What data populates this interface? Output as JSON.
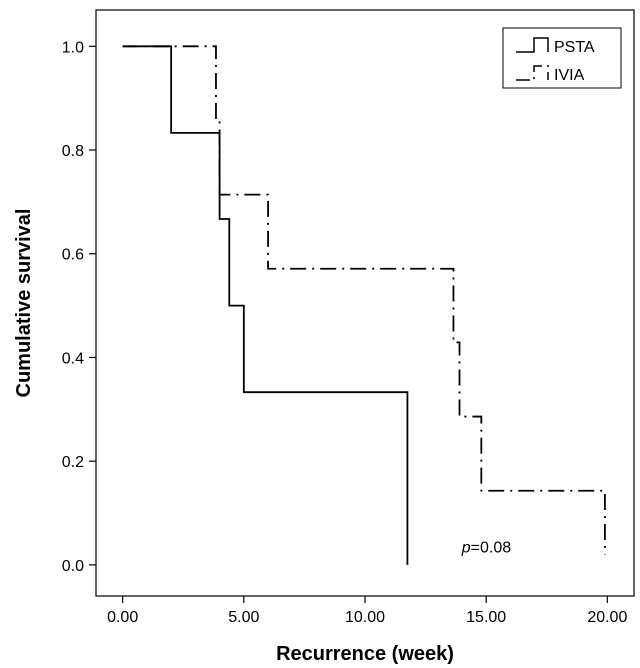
{
  "chart_data": {
    "type": "line",
    "step": true,
    "title": "",
    "xlabel": "Recurrence (week)",
    "ylabel": "Cumulative survival",
    "xlim": [
      -1.1,
      21.1
    ],
    "ylim": [
      -0.06,
      1.07
    ],
    "xticks": [
      0,
      5,
      10,
      15,
      20
    ],
    "xtick_labels": [
      "0.00",
      "5.00",
      "10.00",
      "15.00",
      "20.00"
    ],
    "yticks": [
      0,
      0.2,
      0.4,
      0.6,
      0.8,
      1.0
    ],
    "ytick_labels": [
      "0.0",
      "0.2",
      "0.4",
      "0.6",
      "0.8",
      "1.0"
    ],
    "grid": false,
    "legend_position": "top-right",
    "series": [
      {
        "name": "PSTA",
        "style": "solid",
        "color": "#000000",
        "x": [
          0,
          2.0,
          2.0,
          4.0,
          4.0,
          4.4,
          4.4,
          5.0,
          5.0,
          11.75,
          11.75
        ],
        "y": [
          1.0,
          1.0,
          0.833,
          0.833,
          0.667,
          0.667,
          0.5,
          0.5,
          0.333,
          0.333,
          0.0
        ]
      },
      {
        "name": "IVIA",
        "style": "dashdot",
        "color": "#000000",
        "x": [
          0,
          3.85,
          3.85,
          4.0,
          4.0,
          6.0,
          6.0,
          13.65,
          13.65,
          13.9,
          13.9,
          14.8,
          14.8,
          19.9,
          19.9
        ],
        "y": [
          1.0,
          1.0,
          0.857,
          0.857,
          0.714,
          0.714,
          0.571,
          0.571,
          0.429,
          0.429,
          0.286,
          0.286,
          0.143,
          0.143,
          0.02
        ]
      }
    ],
    "annotation": {
      "prefix": "p",
      "text": "=0.08",
      "x": 14.9,
      "y": 0.02
    }
  }
}
